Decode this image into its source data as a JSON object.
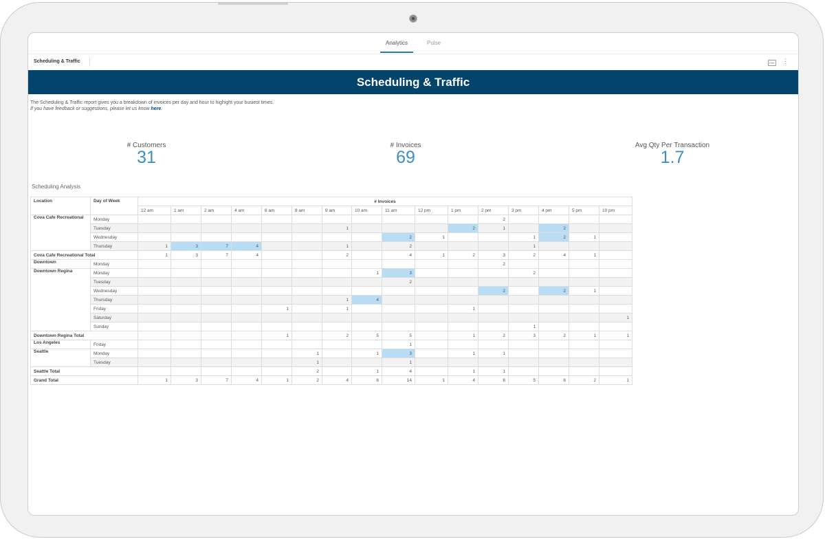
{
  "tabs": [
    {
      "label": "Analytics",
      "active": true
    },
    {
      "label": "Pulse",
      "active": false
    }
  ],
  "subbar": {
    "title": "Scheduling & Traffic",
    "pdf_icon": "pdf-icon",
    "more_icon": "more-vertical-icon"
  },
  "banner": {
    "title": "Scheduling & Traffic"
  },
  "description": {
    "line1": "The Scheduling & Traffic report gives you a breakdown of invoices per day and hour to highight your busiest times.",
    "line2": "If you have feedback or suggestions, please let us know ",
    "link": "here",
    "after_link": "."
  },
  "kpis": [
    {
      "label": "# Customers",
      "value": "31"
    },
    {
      "label": "# Invoices",
      "value": "69"
    },
    {
      "label": "Avg Qty Per Transaction",
      "value": "1.7"
    }
  ],
  "section_title": "Scheduling Analysis",
  "colors": {
    "banner": "#03446c",
    "highlight": "#b9dcf5",
    "kpi_value": "#3b8fc4"
  },
  "table": {
    "measure_header": "# Invoices",
    "location_header": "Location",
    "day_header": "Day of Week",
    "hours": [
      "12 am",
      "1 am",
      "2 am",
      "4 am",
      "6 am",
      "8 am",
      "9 am",
      "10 am",
      "11 am",
      "12 pm",
      "1 pm",
      "2 pm",
      "3 pm",
      "4 pm",
      "5 pm",
      "10 pm"
    ],
    "groups": [
      {
        "location": "Cova Cafe Recreational",
        "rows": [
          {
            "day": "Monday",
            "values": [
              "",
              "",
              "",
              "",
              "",
              "",
              "",
              "",
              "",
              "",
              "",
              "2",
              "",
              "",
              "",
              ""
            ],
            "hl": []
          },
          {
            "day": "Tuesday",
            "values": [
              "",
              "",
              "",
              "",
              "",
              "",
              "1",
              "",
              "",
              "",
              "2",
              "1",
              "",
              "2",
              "",
              ""
            ],
            "hl": [
              10,
              13
            ]
          },
          {
            "day": "Wednesday",
            "values": [
              "",
              "",
              "",
              "",
              "",
              "",
              "",
              "",
              "2",
              "1",
              "",
              "",
              "1",
              "2",
              "1",
              ""
            ],
            "hl": [
              8,
              13
            ]
          },
          {
            "day": "Thursday",
            "values": [
              "1",
              "3",
              "7",
              "4",
              "",
              "",
              "1",
              "",
              "2",
              "",
              "",
              "",
              "1",
              "",
              "",
              ""
            ],
            "hl": [
              1,
              2,
              3
            ]
          }
        ],
        "total": {
          "label": "Cova Cafe Recreational Total",
          "values": [
            "1",
            "3",
            "7",
            "4",
            "",
            "",
            "2",
            "",
            "4",
            "1",
            "2",
            "3",
            "2",
            "4",
            "1",
            ""
          ]
        }
      },
      {
        "location": "Downtown",
        "rows": [
          {
            "day": "Monday",
            "values": [
              "",
              "",
              "",
              "",
              "",
              "",
              "",
              "",
              "",
              "",
              "",
              "2",
              "",
              "",
              "",
              ""
            ],
            "hl": []
          }
        ],
        "total": null
      },
      {
        "location": "Downtown Regina",
        "rows": [
          {
            "day": "Monday",
            "values": [
              "",
              "",
              "",
              "",
              "",
              "",
              "",
              "1",
              "3",
              "",
              "",
              "",
              "2",
              "",
              "",
              ""
            ],
            "hl": [
              8
            ]
          },
          {
            "day": "Tuesday",
            "values": [
              "",
              "",
              "",
              "",
              "",
              "",
              "",
              "",
              "2",
              "",
              "",
              "",
              "",
              "",
              "",
              ""
            ],
            "hl": []
          },
          {
            "day": "Wednesday",
            "values": [
              "",
              "",
              "",
              "",
              "",
              "",
              "",
              "",
              "",
              "",
              "",
              "2",
              "",
              "2",
              "1",
              ""
            ],
            "hl": [
              11,
              13
            ]
          },
          {
            "day": "Thursday",
            "values": [
              "",
              "",
              "",
              "",
              "",
              "",
              "1",
              "4",
              "",
              "",
              "",
              "",
              "",
              "",
              "",
              ""
            ],
            "hl": [
              7
            ]
          },
          {
            "day": "Friday",
            "values": [
              "",
              "",
              "",
              "",
              "1",
              "",
              "1",
              "",
              "",
              "",
              "1",
              "",
              "",
              "",
              "",
              ""
            ],
            "hl": []
          },
          {
            "day": "Saturday",
            "values": [
              "",
              "",
              "",
              "",
              "",
              "",
              "",
              "",
              "",
              "",
              "",
              "",
              "",
              "",
              "",
              "1"
            ],
            "hl": []
          },
          {
            "day": "Sunday",
            "values": [
              "",
              "",
              "",
              "",
              "",
              "",
              "",
              "",
              "",
              "",
              "",
              "",
              "1",
              "",
              "",
              ""
            ],
            "hl": []
          }
        ],
        "total": {
          "label": "Downtown Regina Total",
          "values": [
            "",
            "",
            "",
            "",
            "1",
            "",
            "2",
            "5",
            "5",
            "",
            "1",
            "2",
            "3",
            "2",
            "1",
            "1"
          ]
        }
      },
      {
        "location": "Los Angeles",
        "rows": [
          {
            "day": "Friday",
            "values": [
              "",
              "",
              "",
              "",
              "",
              "",
              "",
              "",
              "1",
              "",
              "",
              "",
              "",
              "",
              "",
              ""
            ],
            "hl": []
          }
        ],
        "total": null
      },
      {
        "location": "Seattle",
        "rows": [
          {
            "day": "Monday",
            "values": [
              "",
              "",
              "",
              "",
              "",
              "1",
              "",
              "1",
              "3",
              "",
              "1",
              "1",
              "",
              "",
              "",
              ""
            ],
            "hl": [
              8
            ]
          },
          {
            "day": "Tuesday",
            "values": [
              "",
              "",
              "",
              "",
              "",
              "1",
              "",
              "",
              "1",
              "",
              "",
              "",
              "",
              "",
              "",
              ""
            ],
            "hl": []
          }
        ],
        "total": {
          "label": "Seattle Total",
          "values": [
            "",
            "",
            "",
            "",
            "",
            "2",
            "",
            "1",
            "4",
            "",
            "1",
            "1",
            "",
            "",
            "",
            ""
          ]
        }
      }
    ],
    "grand_total": {
      "label": "Grand Total",
      "values": [
        "1",
        "3",
        "7",
        "4",
        "1",
        "2",
        "4",
        "6",
        "14",
        "1",
        "4",
        "8",
        "5",
        "6",
        "2",
        "1"
      ]
    }
  }
}
